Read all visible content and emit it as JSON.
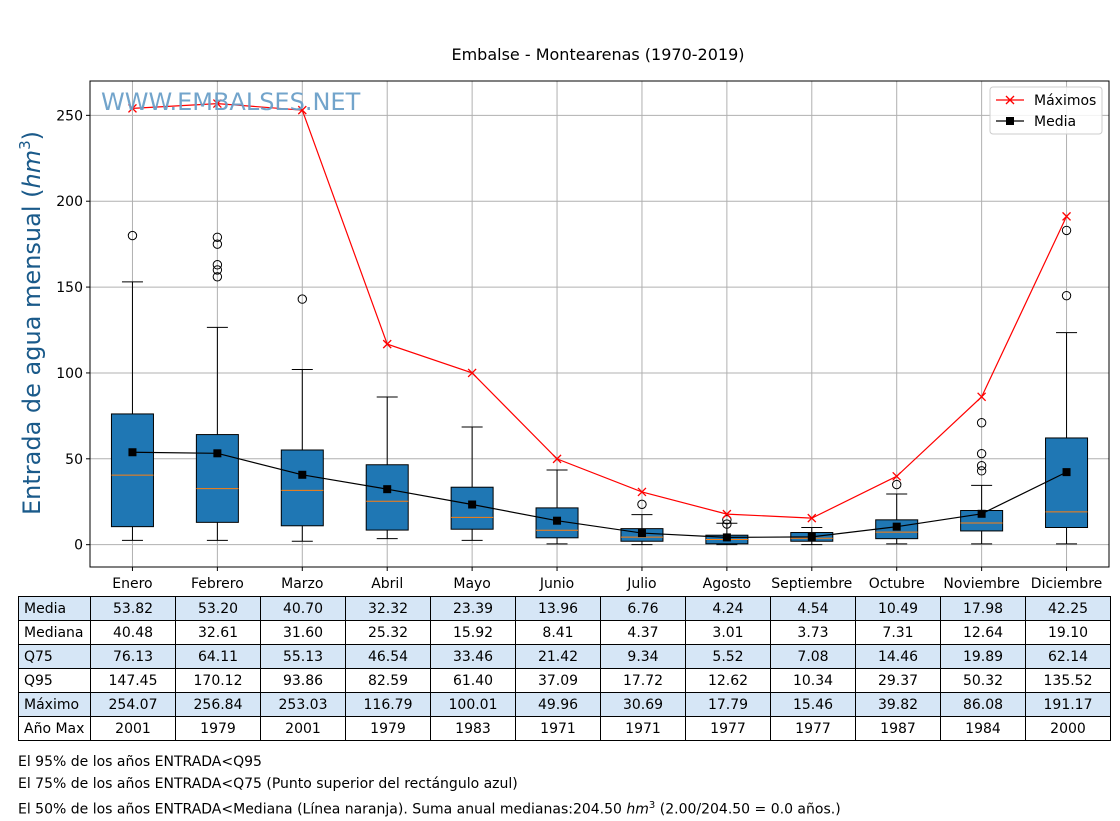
{
  "chart_data": {
    "type": "box",
    "title": "Embalse - Montearenas (1970-2019)",
    "watermark": "WWW.EMBALSES.NET",
    "ylabel_prefix": "Entrada de agua mensual (",
    "ylabel_unit": "hm",
    "ylabel_exp": "3",
    "ylabel_suffix": ")",
    "ylim": [
      -13,
      270
    ],
    "yticks": [
      0,
      50,
      100,
      150,
      200,
      250
    ],
    "grid": true,
    "legend_position": "top-right",
    "categories": [
      "Enero",
      "Febrero",
      "Marzo",
      "Abril",
      "Mayo",
      "Junio",
      "Julio",
      "Agosto",
      "Septiembre",
      "Octubre",
      "Noviembre",
      "Diciembre"
    ],
    "boxes": [
      {
        "whislo": 2.5,
        "q1": 10.5,
        "med": 40.48,
        "q3": 76.13,
        "whishi": 153,
        "fliers": [
          180
        ]
      },
      {
        "whislo": 2.5,
        "q1": 13.0,
        "med": 32.61,
        "q3": 64.11,
        "whishi": 126.5,
        "fliers": [
          156,
          160,
          163,
          175,
          179
        ]
      },
      {
        "whislo": 2.0,
        "q1": 11.0,
        "med": 31.6,
        "q3": 55.13,
        "whishi": 102,
        "fliers": [
          143
        ]
      },
      {
        "whislo": 3.5,
        "q1": 8.5,
        "med": 25.32,
        "q3": 46.54,
        "whishi": 86,
        "fliers": []
      },
      {
        "whislo": 2.5,
        "q1": 9.0,
        "med": 15.92,
        "q3": 33.46,
        "whishi": 68.5,
        "fliers": []
      },
      {
        "whislo": 0.5,
        "q1": 4.0,
        "med": 8.41,
        "q3": 21.42,
        "whishi": 43.5,
        "fliers": []
      },
      {
        "whislo": 0.0,
        "q1": 2.0,
        "med": 4.37,
        "q3": 9.34,
        "whishi": 17.5,
        "fliers": [
          23.5
        ]
      },
      {
        "whislo": 0.0,
        "q1": 0.5,
        "med": 3.01,
        "q3": 5.52,
        "whishi": 12.5,
        "fliers": [
          12.0,
          14.5
        ]
      },
      {
        "whislo": 0.0,
        "q1": 2.0,
        "med": 3.73,
        "q3": 7.08,
        "whishi": 10.0,
        "fliers": []
      },
      {
        "whislo": 0.5,
        "q1": 3.5,
        "med": 7.31,
        "q3": 14.46,
        "whishi": 29.5,
        "fliers": [
          35.0
        ]
      },
      {
        "whislo": 0.5,
        "q1": 8.0,
        "med": 12.64,
        "q3": 19.89,
        "whishi": 34.5,
        "fliers": [
          43.0,
          46.0,
          53.0,
          71.0
        ]
      },
      {
        "whislo": 0.5,
        "q1": 10.0,
        "med": 19.1,
        "q3": 62.14,
        "whishi": 123.5,
        "fliers": [
          145.0,
          183.0
        ]
      }
    ],
    "series": [
      {
        "name": "Máximos",
        "color": "#ff0000",
        "marker": "x",
        "values": [
          254.07,
          256.84,
          253.03,
          116.79,
          100.01,
          49.96,
          30.69,
          17.79,
          15.46,
          39.82,
          86.08,
          191.17
        ]
      },
      {
        "name": "Media",
        "color": "#000000",
        "marker": "square",
        "values": [
          53.82,
          53.2,
          40.7,
          32.32,
          23.39,
          13.96,
          6.76,
          4.24,
          4.54,
          10.49,
          17.98,
          42.25
        ]
      }
    ],
    "box_color": "#1f77b4",
    "median_color": "#ff7f0e"
  },
  "table": {
    "rows": [
      {
        "label": "Media",
        "values": [
          "53.82",
          "53.20",
          "40.70",
          "32.32",
          "23.39",
          "13.96",
          "6.76",
          "4.24",
          "4.54",
          "10.49",
          "17.98",
          "42.25"
        ]
      },
      {
        "label": "Mediana",
        "values": [
          "40.48",
          "32.61",
          "31.60",
          "25.32",
          "15.92",
          "8.41",
          "4.37",
          "3.01",
          "3.73",
          "7.31",
          "12.64",
          "19.10"
        ]
      },
      {
        "label": "Q75",
        "values": [
          "76.13",
          "64.11",
          "55.13",
          "46.54",
          "33.46",
          "21.42",
          "9.34",
          "5.52",
          "7.08",
          "14.46",
          "19.89",
          "62.14"
        ]
      },
      {
        "label": "Q95",
        "values": [
          "147.45",
          "170.12",
          "93.86",
          "82.59",
          "61.40",
          "37.09",
          "17.72",
          "12.62",
          "10.34",
          "29.37",
          "50.32",
          "135.52"
        ]
      },
      {
        "label": "Máximo",
        "values": [
          "254.07",
          "256.84",
          "253.03",
          "116.79",
          "100.01",
          "49.96",
          "30.69",
          "17.79",
          "15.46",
          "39.82",
          "86.08",
          "191.17"
        ]
      },
      {
        "label": "Año Max",
        "values": [
          "2001",
          "1979",
          "2001",
          "1979",
          "1983",
          "1971",
          "1971",
          "1977",
          "1977",
          "1987",
          "1984",
          "2000"
        ]
      }
    ]
  },
  "notes": {
    "line1": "El 95% de los años ENTRADA<Q95",
    "line2": "El 75% de los años ENTRADA<Q75 (Punto superior del rectángulo azul)",
    "line3_a": "El 50% de los años ENTRADA<Mediana (Línea naranja). Suma anual medianas:204.50 ",
    "line3_unit": "hm",
    "line3_exp": "3",
    "line3_b": " (2.00/204.50 = 0.0 años.)"
  }
}
